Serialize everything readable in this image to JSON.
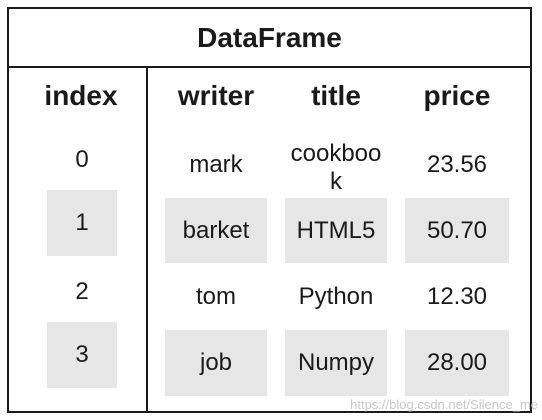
{
  "title": "DataFrame",
  "headers": {
    "index": "index",
    "writer": "writer",
    "title": "title",
    "price": "price"
  },
  "rows": [
    {
      "index": "0",
      "writer": "mark",
      "title": "cookbook",
      "price": "23.56",
      "shaded": false
    },
    {
      "index": "1",
      "writer": "barket",
      "title": "HTML5",
      "price": "50.70",
      "shaded": true
    },
    {
      "index": "2",
      "writer": "tom",
      "title": "Python",
      "price": "12.30",
      "shaded": false
    },
    {
      "index": "3",
      "writer": "job",
      "title": "Numpy",
      "price": "28.00",
      "shaded": true
    }
  ],
  "watermark": "https://blog.csdn.net/Silence_me",
  "colors": {
    "border": "#1a1a1a",
    "shade": "#e6e6e6",
    "background": "#ffffff"
  }
}
